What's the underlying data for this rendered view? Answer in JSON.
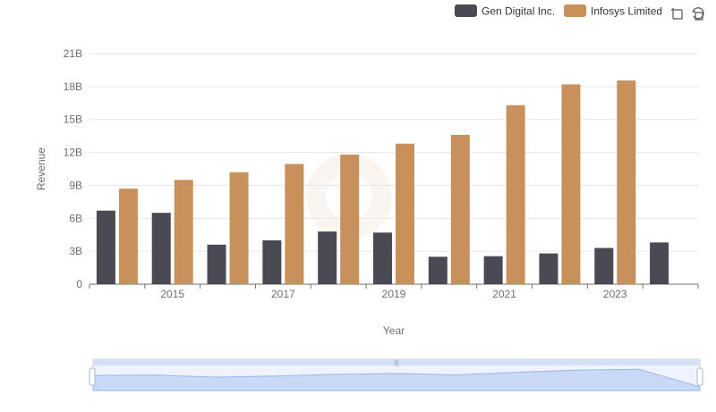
{
  "chart_data": {
    "type": "bar",
    "xlabel": "Year",
    "ylabel": "Revenue",
    "x": [
      2014,
      2015,
      2016,
      2017,
      2018,
      2019,
      2020,
      2021,
      2022,
      2023,
      2024
    ],
    "x_tick_labels": [
      "2015",
      "2017",
      "2019",
      "2021",
      "2023"
    ],
    "y_tick_labels": [
      "0",
      "3B",
      "6B",
      "9B",
      "12B",
      "15B",
      "18B",
      "21B"
    ],
    "ylim": [
      0,
      21000000000
    ],
    "grid": true,
    "legend_position": "top-right",
    "series": [
      {
        "name": "Gen Digital Inc.",
        "color": "#4a4a55",
        "values": [
          6700000000,
          6500000000,
          3600000000,
          4000000000,
          4800000000,
          4700000000,
          2500000000,
          2550000000,
          2800000000,
          3300000000,
          3800000000
        ]
      },
      {
        "name": "Infosys Limited",
        "color": "#c8905a",
        "values": [
          8700000000,
          9500000000,
          10200000000,
          10950000000,
          11800000000,
          12800000000,
          13600000000,
          16300000000,
          18200000000,
          18550000000,
          null
        ]
      }
    ]
  },
  "toolbar": {
    "zoom_icon": "zoom-icon",
    "reset_icon": "restore-icon"
  },
  "zoom_slider": {
    "range_start": 0,
    "range_end": 1,
    "handle_color": "#a7b7cc",
    "fill_color": "#d6e2f8"
  }
}
